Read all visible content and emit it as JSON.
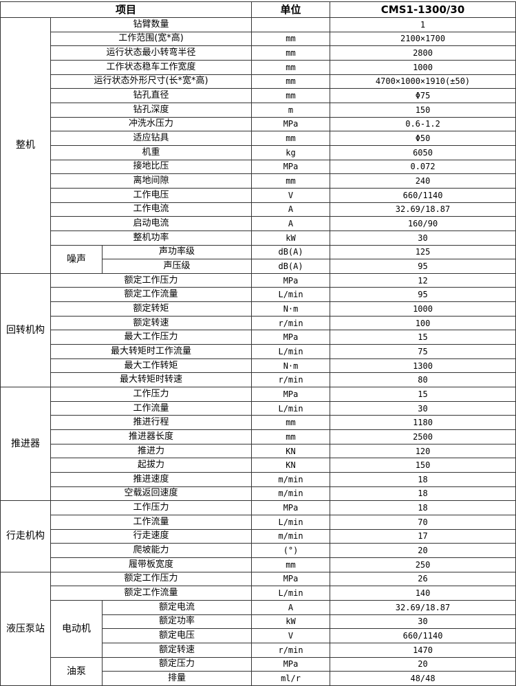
{
  "header": {
    "item": "项目",
    "unit": "单位",
    "model": "CMS1-1300/30"
  },
  "groups": [
    {
      "name": "整机",
      "rows": [
        {
          "item": "钻臂数量",
          "unit": "",
          "value": "1"
        },
        {
          "item": "工作范围(宽*高)",
          "unit": "mm",
          "value": "2100×1700"
        },
        {
          "item": "运行状态最小转弯半径",
          "unit": "mm",
          "value": "2800"
        },
        {
          "item": "工作状态稳车工作宽度",
          "unit": "mm",
          "value": "1000"
        },
        {
          "item": "运行状态外形尺寸(长*宽*高)",
          "unit": "mm",
          "value": "4700×1000×1910(±50)"
        },
        {
          "item": "钻孔直径",
          "unit": "mm",
          "value": "Φ75"
        },
        {
          "item": "钻孔深度",
          "unit": "m",
          "value": "150"
        },
        {
          "item": "冲洗水压力",
          "unit": "MPa",
          "value": "0.6-1.2"
        },
        {
          "item": "适应钻具",
          "unit": "mm",
          "value": "Φ50"
        },
        {
          "item": "机重",
          "unit": "kg",
          "value": "6050"
        },
        {
          "item": "接地比压",
          "unit": "MPa",
          "value": "0.072"
        },
        {
          "item": "离地间隙",
          "unit": "mm",
          "value": "240"
        },
        {
          "item": "工作电压",
          "unit": "V",
          "value": "660/1140"
        },
        {
          "item": "工作电流",
          "unit": "A",
          "value": "32.69/18.87"
        },
        {
          "item": "启动电流",
          "unit": "A",
          "value": "160/90"
        },
        {
          "item": "整机功率",
          "unit": "kW",
          "value": "30"
        },
        {
          "sub": "噪声",
          "item": "声功率级",
          "unit": "dB(A)",
          "value": "125"
        },
        {
          "sub": "噪声",
          "item": "声压级",
          "unit": "dB(A)",
          "value": "95"
        }
      ]
    },
    {
      "name": "回转机构",
      "rows": [
        {
          "item": "额定工作压力",
          "unit": "MPa",
          "value": "12"
        },
        {
          "item": "额定工作流量",
          "unit": "L/min",
          "value": "95"
        },
        {
          "item": "额定转矩",
          "unit": "N·m",
          "value": "1000"
        },
        {
          "item": "额定转速",
          "unit": "r/min",
          "value": "100"
        },
        {
          "item": "最大工作压力",
          "unit": "MPa",
          "value": "15"
        },
        {
          "item": "最大转矩时工作流量",
          "unit": "L/min",
          "value": "75"
        },
        {
          "item": "最大工作转矩",
          "unit": "N·m",
          "value": "1300"
        },
        {
          "item": "最大转矩时转速",
          "unit": "r/min",
          "value": "80"
        }
      ]
    },
    {
      "name": "推进器",
      "rows": [
        {
          "item": "工作压力",
          "unit": "MPa",
          "value": "15"
        },
        {
          "item": "工作流量",
          "unit": "L/min",
          "value": "30"
        },
        {
          "item": "推进行程",
          "unit": "mm",
          "value": "1180"
        },
        {
          "item": "推进器长度",
          "unit": "mm",
          "value": "2500"
        },
        {
          "item": "推进力",
          "unit": "KN",
          "value": "120"
        },
        {
          "item": "起拔力",
          "unit": "KN",
          "value": "150"
        },
        {
          "item": "推进速度",
          "unit": "m/min",
          "value": "18"
        },
        {
          "item": "空载返回速度",
          "unit": "m/min",
          "value": "18"
        }
      ]
    },
    {
      "name": "行走机构",
      "rows": [
        {
          "item": "工作压力",
          "unit": "MPa",
          "value": "18"
        },
        {
          "item": "工作流量",
          "unit": "L/min",
          "value": "70"
        },
        {
          "item": "行走速度",
          "unit": "m/min",
          "value": "17"
        },
        {
          "item": "爬坡能力",
          "unit": "(°)",
          "value": "20"
        },
        {
          "item": "履带板宽度",
          "unit": "mm",
          "value": "250"
        }
      ]
    },
    {
      "name": "液压泵站",
      "rows": [
        {
          "item": "额定工作压力",
          "unit": "MPa",
          "value": "26"
        },
        {
          "item": "额定工作流量",
          "unit": "L/min",
          "value": "140"
        },
        {
          "sub": "电动机",
          "item": "额定电流",
          "unit": "A",
          "value": "32.69/18.87"
        },
        {
          "sub": "电动机",
          "item": "额定功率",
          "unit": "kW",
          "value": "30"
        },
        {
          "sub": "电动机",
          "item": "额定电压",
          "unit": "V",
          "value": "660/1140"
        },
        {
          "sub": "电动机",
          "item": "额定转速",
          "unit": "r/min",
          "value": "1470"
        },
        {
          "sub": "油泵",
          "item": "额定压力",
          "unit": "MPa",
          "value": "20"
        },
        {
          "sub": "油泵",
          "item": "排量",
          "unit": "ml/r",
          "value": "48/48"
        }
      ]
    }
  ]
}
